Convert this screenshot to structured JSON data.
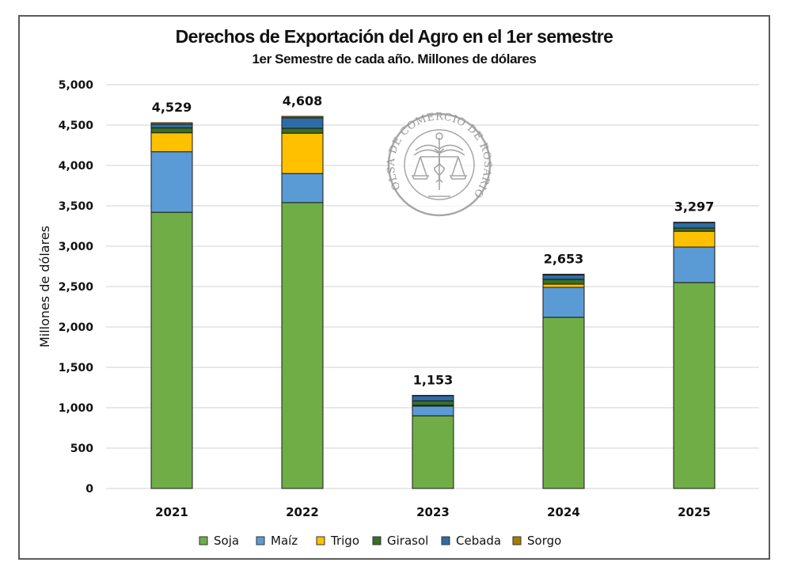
{
  "chart_data": {
    "type": "bar",
    "stacked": true,
    "title": "Derechos de Exportación del Agro en el 1er semestre",
    "subtitle": "1er Semestre de cada año. Millones de dólares",
    "xlabel": "",
    "ylabel": "Millones de dólares",
    "ylim": [
      0,
      5000
    ],
    "yticks": [
      0,
      500,
      1000,
      1500,
      2000,
      2500,
      3000,
      3500,
      4000,
      4500,
      5000
    ],
    "ytick_labels": [
      "0",
      "500",
      "1,000",
      "1,500",
      "2,000",
      "2,500",
      "3,000",
      "3,500",
      "4,000",
      "4,500",
      "5,000"
    ],
    "grid": true,
    "legend_position": "bottom",
    "categories": [
      "2021",
      "2022",
      "2023",
      "2024",
      "2025"
    ],
    "series": [
      {
        "name": "Soja",
        "color": "#70AD47",
        "values": [
          3420,
          3540,
          900,
          2120,
          2550
        ]
      },
      {
        "name": "Maíz",
        "color": "#5B9BD5",
        "values": [
          750,
          360,
          120,
          370,
          440
        ]
      },
      {
        "name": "Trigo",
        "color": "#FFC000",
        "values": [
          235,
          500,
          10,
          40,
          195
        ]
      },
      {
        "name": "Girasol",
        "color": "#3B6E27",
        "values": [
          60,
          60,
          55,
          60,
          40
        ]
      },
      {
        "name": "Cebada",
        "color": "#2E6DA4",
        "values": [
          45,
          130,
          65,
          55,
          65
        ]
      },
      {
        "name": "Sorgo",
        "color": "#A67C00",
        "values": [
          19,
          18,
          3,
          8,
          7
        ]
      }
    ],
    "totals": [
      4529,
      4608,
      1153,
      2653,
      3297
    ],
    "total_labels": [
      "4,529",
      "4,608",
      "1,153",
      "2,653",
      "3,297"
    ],
    "watermark": "BOLSA DE COMERCIO DE ROSARIO"
  }
}
